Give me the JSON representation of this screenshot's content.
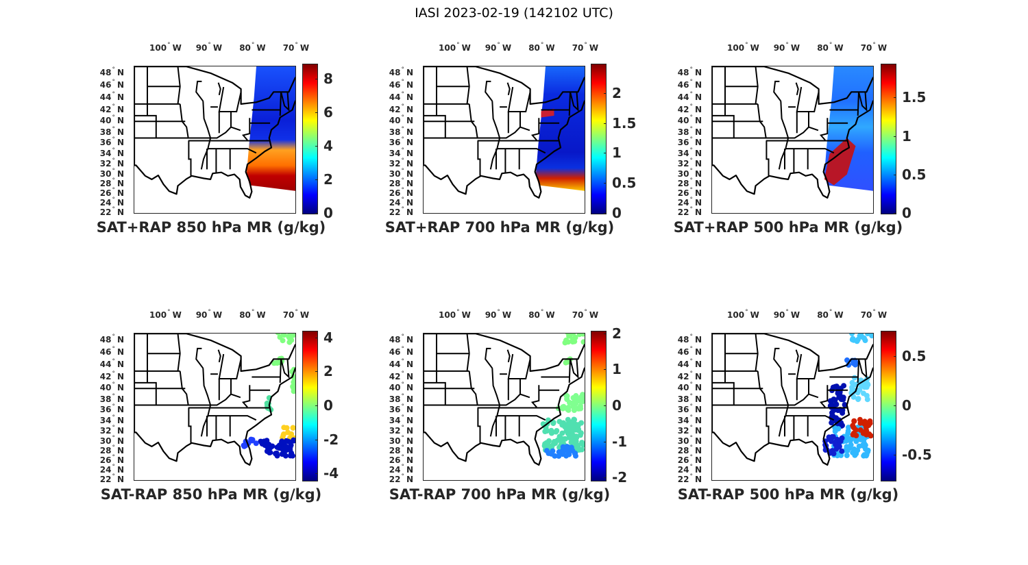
{
  "title": "IASI 2023-02-19 (142102 UTC)",
  "lon_labels": [
    "100",
    "90",
    "80",
    "70"
  ],
  "lon_hemi": "W",
  "lat_labels": [
    "48",
    "46",
    "44",
    "42",
    "40",
    "38",
    "36",
    "34",
    "32",
    "30",
    "28",
    "26",
    "24",
    "22"
  ],
  "lat_hemi": "N",
  "colormap": "jet",
  "panels": [
    {
      "title": "SAT+RAP 850 hPa MR (g/kg)",
      "clim": [
        0,
        8.9
      ],
      "ticks": [
        "0",
        "2",
        "4",
        "6",
        "8"
      ]
    },
    {
      "title": "SAT+RAP 700 hPa MR (g/kg)",
      "clim": [
        0,
        2.49
      ],
      "ticks": [
        "0",
        "0.5",
        "1",
        "1.5",
        "2"
      ]
    },
    {
      "title": "SAT+RAP 500 hPa MR (g/kg)",
      "clim": [
        0,
        1.94
      ],
      "ticks": [
        "0",
        "0.5",
        "1",
        "1.5"
      ]
    },
    {
      "title": "SAT-RAP 850 hPa MR (g/kg)",
      "clim": [
        -4.4,
        4.4
      ],
      "ticks": [
        "-4",
        "-2",
        "0",
        "2",
        "4"
      ]
    },
    {
      "title": "SAT-RAP 700 hPa MR (g/kg)",
      "clim": [
        -2.07,
        2.07
      ],
      "ticks": [
        "-2",
        "-1",
        "0",
        "1",
        "2"
      ]
    },
    {
      "title": "SAT-RAP 500 hPa MR (g/kg)",
      "clim": [
        -0.76,
        0.76
      ],
      "ticks": [
        "-0.5",
        "0",
        "0.5"
      ]
    }
  ]
}
